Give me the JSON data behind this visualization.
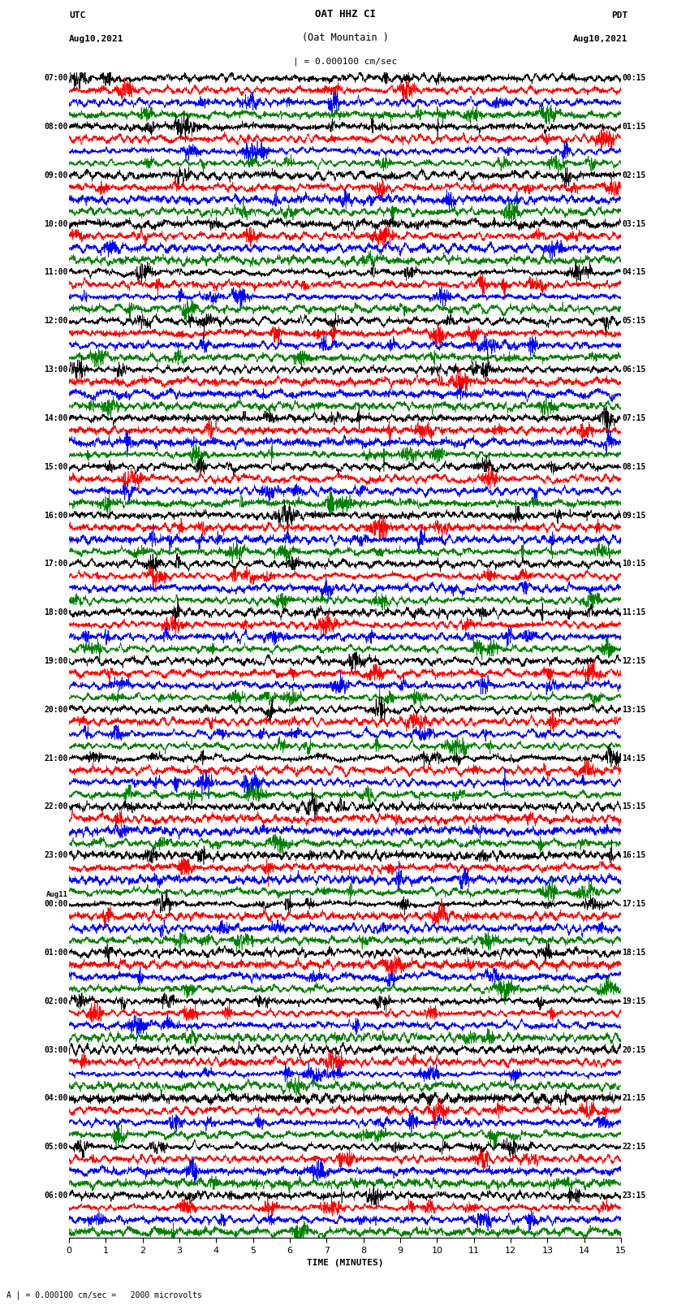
{
  "title_line1": "OAT HHZ CI",
  "title_line2": "(Oat Mountain )",
  "scale_label": "| = 0.000100 cm/sec",
  "scale_annotation": "A | = 0.000100 cm/sec =   2000 microvolts",
  "left_header": "UTC",
  "left_date": "Aug10,2021",
  "right_header": "PDT",
  "right_date": "Aug10,2021",
  "xlabel": "TIME (MINUTES)",
  "xlim": [
    0,
    15
  ],
  "xticks": [
    0,
    1,
    2,
    3,
    4,
    5,
    6,
    7,
    8,
    9,
    10,
    11,
    12,
    13,
    14,
    15
  ],
  "left_times": [
    "07:00",
    "08:00",
    "09:00",
    "10:00",
    "11:00",
    "12:00",
    "13:00",
    "14:00",
    "15:00",
    "16:00",
    "17:00",
    "18:00",
    "19:00",
    "20:00",
    "21:00",
    "22:00",
    "23:00",
    "Aug11\n00:00",
    "01:00",
    "02:00",
    "03:00",
    "04:00",
    "05:00",
    "06:00"
  ],
  "right_times": [
    "00:15",
    "01:15",
    "02:15",
    "03:15",
    "04:15",
    "05:15",
    "06:15",
    "07:15",
    "08:15",
    "09:15",
    "10:15",
    "11:15",
    "12:15",
    "13:15",
    "14:15",
    "15:15",
    "16:15",
    "17:15",
    "18:15",
    "19:15",
    "20:15",
    "21:15",
    "22:15",
    "23:15"
  ],
  "trace_colors": [
    "#000000",
    "#ff0000",
    "#0000ff",
    "#008000"
  ],
  "n_rows": 24,
  "traces_per_row": 4,
  "fig_width": 8.5,
  "fig_height": 16.13,
  "dpi": 100,
  "random_seed": 42
}
